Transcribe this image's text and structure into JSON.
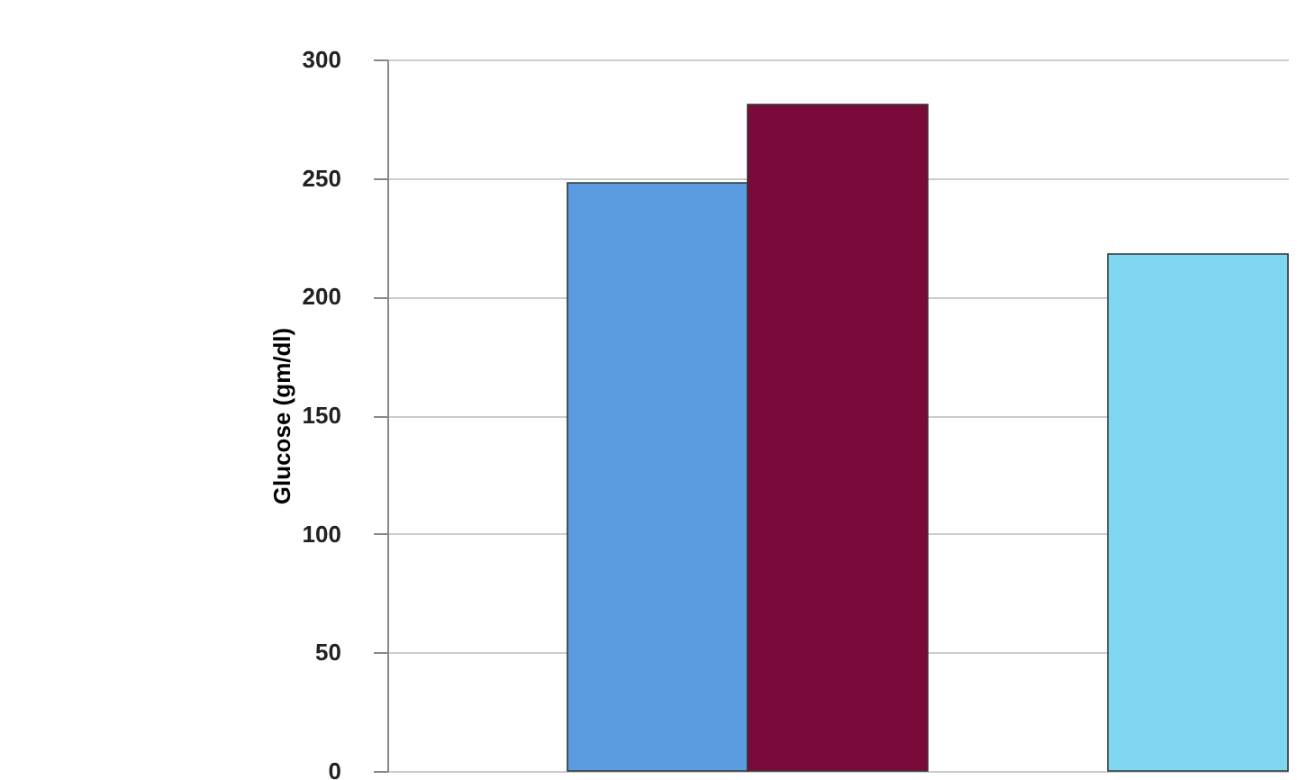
{
  "chart_data": {
    "type": "bar",
    "ylabel": "Glucose (gm/dl)",
    "categories": [
      null,
      null,
      null,
      null,
      null
    ],
    "values": [
      null,
      248,
      281,
      null,
      218
    ],
    "colors": [
      "#5b9be0",
      "#5b9be0",
      "#7a0a3a",
      "#7fd8f0",
      "#7fd8f0"
    ],
    "ylim": [
      0,
      300
    ],
    "yticks": [
      0,
      50,
      100,
      150,
      200,
      250,
      300
    ],
    "grid": "y",
    "tick_labels": "y"
  }
}
